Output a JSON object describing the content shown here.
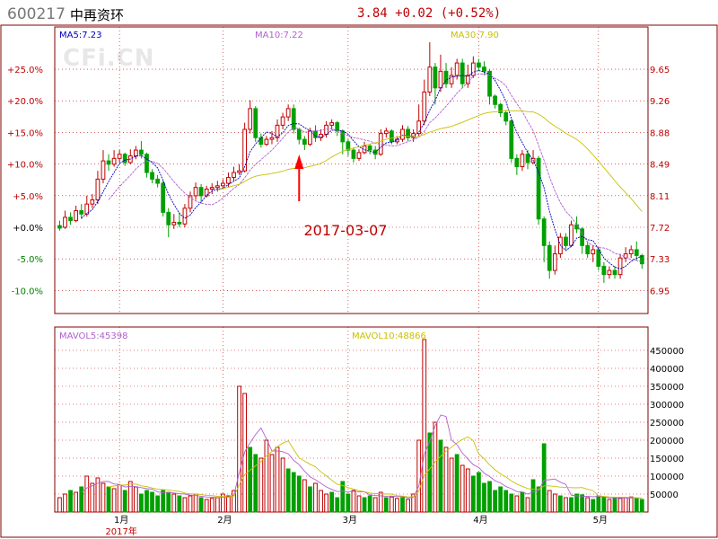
{
  "header": {
    "code": "600217",
    "name": "中再资环",
    "quote": "3.84 +0.02 (+0.52%)"
  },
  "watermark": "CFi.CN",
  "ma_labels": {
    "ma5": "MA5:7.23",
    "ma10": "MA10:7.22",
    "ma30": "MA30:7.90"
  },
  "vol_labels": {
    "mavol5": "MAVOL5:45398",
    "mavol10": "MAVOL10:48866"
  },
  "annotation": {
    "text": "2017-03-07"
  },
  "colors": {
    "up": "#c00000",
    "down": "#00a000",
    "ma5": "#0000c0",
    "ma10": "#b060d0",
    "ma30": "#c8c000",
    "axis": "#800000",
    "grid": "#c00000"
  },
  "chart_data": {
    "type": "candlestick",
    "pct_ticks": [
      "+25.0%",
      "+20.0%",
      "+15.0%",
      "+10.0%",
      "+5.0%",
      "+0.0%",
      "-5.0%",
      "-10.0%"
    ],
    "price_ticks": [
      9.65,
      9.26,
      8.88,
      8.49,
      8.11,
      7.72,
      7.33,
      6.95
    ],
    "vol_ticks": [
      450000,
      400000,
      350000,
      300000,
      250000,
      200000,
      150000,
      100000,
      50000
    ],
    "month_labels": [
      "1月",
      "2月",
      "3月",
      "4月",
      "5月"
    ],
    "year_label": "2017年",
    "candles": [
      [
        7.64,
        7.61,
        7.7,
        7.58
      ],
      [
        7.62,
        7.74,
        7.82,
        7.6
      ],
      [
        7.74,
        7.7,
        7.8,
        7.65
      ],
      [
        7.7,
        7.82,
        7.88,
        7.68
      ],
      [
        7.82,
        7.78,
        7.9,
        7.72
      ],
      [
        7.78,
        7.9,
        8.0,
        7.75
      ],
      [
        7.9,
        7.95,
        8.02,
        7.85
      ],
      [
        7.95,
        8.2,
        8.3,
        7.9
      ],
      [
        8.2,
        8.42,
        8.55,
        8.15
      ],
      [
        8.42,
        8.38,
        8.5,
        8.3
      ],
      [
        8.38,
        8.45,
        8.55,
        8.35
      ],
      [
        8.45,
        8.5,
        8.55,
        8.4
      ],
      [
        8.5,
        8.4,
        8.52,
        8.36
      ],
      [
        8.4,
        8.48,
        8.56,
        8.38
      ],
      [
        8.48,
        8.55,
        8.6,
        8.44
      ],
      [
        8.55,
        8.5,
        8.66,
        8.45
      ],
      [
        8.5,
        8.28,
        8.52,
        8.22
      ],
      [
        8.28,
        8.2,
        8.32,
        8.15
      ],
      [
        8.2,
        8.15,
        8.25,
        8.1
      ],
      [
        8.15,
        7.8,
        8.18,
        7.75
      ],
      [
        7.8,
        7.65,
        7.85,
        7.5
      ],
      [
        7.65,
        7.68,
        7.78,
        7.6
      ],
      [
        7.68,
        7.66,
        7.8,
        7.62
      ],
      [
        7.66,
        7.85,
        7.9,
        7.62
      ],
      [
        7.85,
        8.0,
        8.05,
        7.8
      ],
      [
        8.0,
        8.1,
        8.16,
        7.95
      ],
      [
        8.1,
        8.0,
        8.14,
        7.92
      ],
      [
        8.0,
        8.08,
        8.12,
        7.98
      ],
      [
        8.08,
        8.1,
        8.15,
        8.02
      ],
      [
        8.1,
        8.12,
        8.18,
        8.05
      ],
      [
        8.12,
        8.15,
        8.2,
        8.08
      ],
      [
        8.15,
        8.22,
        8.28,
        8.1
      ],
      [
        8.22,
        8.28,
        8.35,
        8.18
      ],
      [
        8.28,
        8.3,
        8.38,
        8.25
      ],
      [
        8.3,
        8.8,
        8.88,
        8.28
      ],
      [
        8.8,
        9.05,
        9.15,
        8.75
      ],
      [
        9.05,
        8.7,
        9.08,
        8.65
      ],
      [
        8.7,
        8.62,
        8.75,
        8.58
      ],
      [
        8.62,
        8.68,
        8.72,
        8.6
      ],
      [
        8.68,
        8.7,
        8.78,
        8.62
      ],
      [
        8.7,
        8.85,
        8.92,
        8.65
      ],
      [
        8.85,
        8.95,
        9.0,
        8.8
      ],
      [
        8.95,
        9.05,
        9.1,
        8.9
      ],
      [
        9.05,
        8.8,
        9.1,
        8.75
      ],
      [
        8.8,
        8.68,
        8.82,
        8.62
      ],
      [
        8.68,
        8.62,
        8.72,
        8.55
      ],
      [
        8.62,
        8.78,
        8.82,
        8.6
      ],
      [
        8.78,
        8.7,
        8.85,
        8.65
      ],
      [
        8.7,
        8.74,
        8.8,
        8.66
      ],
      [
        8.74,
        8.85,
        8.9,
        8.7
      ],
      [
        8.85,
        8.88,
        8.92,
        8.8
      ],
      [
        8.88,
        8.78,
        8.9,
        8.72
      ],
      [
        8.78,
        8.65,
        8.8,
        8.5
      ],
      [
        8.65,
        8.55,
        8.68,
        8.48
      ],
      [
        8.55,
        8.45,
        8.58,
        8.4
      ],
      [
        8.45,
        8.52,
        8.56,
        8.42
      ],
      [
        8.52,
        8.6,
        8.65,
        8.5
      ],
      [
        8.6,
        8.55,
        8.62,
        8.5
      ],
      [
        8.55,
        8.5,
        8.6,
        8.44
      ],
      [
        8.5,
        8.75,
        8.8,
        8.48
      ],
      [
        8.75,
        8.78,
        8.82,
        8.7
      ],
      [
        8.78,
        8.65,
        8.8,
        8.62
      ],
      [
        8.65,
        8.68,
        8.72,
        8.62
      ],
      [
        8.68,
        8.8,
        8.85,
        8.65
      ],
      [
        8.8,
        8.7,
        8.84,
        8.66
      ],
      [
        8.7,
        8.75,
        8.8,
        8.65
      ],
      [
        8.75,
        8.9,
        9.1,
        8.72
      ],
      [
        8.9,
        9.25,
        9.4,
        8.85
      ],
      [
        9.25,
        9.55,
        9.85,
        9.2
      ],
      [
        9.55,
        9.3,
        9.6,
        9.1
      ],
      [
        9.3,
        9.5,
        9.7,
        9.25
      ],
      [
        9.5,
        9.35,
        9.6,
        9.3
      ],
      [
        9.35,
        9.45,
        9.55,
        9.3
      ],
      [
        9.45,
        9.6,
        9.65,
        9.4
      ],
      [
        9.6,
        9.35,
        9.65,
        9.3
      ],
      [
        9.35,
        9.45,
        9.58,
        9.3
      ],
      [
        9.45,
        9.6,
        9.68,
        9.42
      ],
      [
        9.6,
        9.55,
        9.65,
        9.5
      ],
      [
        9.55,
        9.5,
        9.62,
        9.45
      ],
      [
        9.5,
        9.2,
        9.52,
        9.1
      ],
      [
        9.2,
        9.1,
        9.22,
        9.05
      ],
      [
        9.1,
        9.0,
        9.12,
        8.95
      ],
      [
        9.0,
        8.9,
        9.02,
        8.85
      ],
      [
        8.9,
        8.45,
        8.92,
        8.4
      ],
      [
        8.45,
        8.35,
        8.5,
        8.25
      ],
      [
        8.35,
        8.5,
        8.55,
        8.3
      ],
      [
        8.5,
        8.4,
        8.55,
        8.32
      ],
      [
        8.4,
        8.45,
        8.55,
        8.38
      ],
      [
        8.45,
        7.72,
        8.48,
        7.65
      ],
      [
        7.72,
        7.4,
        7.75,
        7.2
      ],
      [
        7.4,
        7.1,
        7.45,
        7.0
      ],
      [
        7.1,
        7.3,
        7.4,
        7.05
      ],
      [
        7.3,
        7.5,
        7.55,
        7.25
      ],
      [
        7.5,
        7.4,
        7.55,
        7.35
      ],
      [
        7.4,
        7.65,
        7.7,
        7.38
      ],
      [
        7.65,
        7.6,
        7.75,
        7.55
      ],
      [
        7.6,
        7.4,
        7.62,
        7.3
      ],
      [
        7.4,
        7.3,
        7.45,
        7.25
      ],
      [
        7.3,
        7.35,
        7.4,
        7.2
      ],
      [
        7.35,
        7.15,
        7.38,
        7.1
      ],
      [
        7.15,
        7.05,
        7.2,
        6.95
      ],
      [
        7.05,
        7.1,
        7.15,
        7.0
      ],
      [
        7.1,
        7.05,
        7.15,
        7.0
      ],
      [
        7.05,
        7.25,
        7.3,
        7.0
      ],
      [
        7.25,
        7.3,
        7.38,
        7.2
      ],
      [
        7.3,
        7.35,
        7.4,
        7.25
      ],
      [
        7.35,
        7.28,
        7.45,
        7.22
      ],
      [
        7.28,
        7.18,
        7.3,
        7.12
      ]
    ],
    "volumes": [
      40000,
      50000,
      60000,
      55000,
      70000,
      100000,
      80000,
      95000,
      80000,
      70000,
      65000,
      75000,
      60000,
      85000,
      70000,
      50000,
      60000,
      55000,
      45000,
      60000,
      55000,
      50000,
      45000,
      40000,
      45000,
      50000,
      40000,
      35000,
      38000,
      40000,
      50000,
      45000,
      60000,
      350000,
      330000,
      180000,
      160000,
      150000,
      200000,
      160000,
      180000,
      150000,
      120000,
      110000,
      100000,
      90000,
      70000,
      80000,
      60000,
      50000,
      55000,
      40000,
      85000,
      50000,
      60000,
      45000,
      40000,
      45000,
      40000,
      55000,
      40000,
      42000,
      38000,
      40000,
      35000,
      50000,
      200000,
      480000,
      220000,
      250000,
      200000,
      180000,
      150000,
      160000,
      130000,
      120000,
      100000,
      110000,
      80000,
      85000,
      60000,
      70000,
      60000,
      50000,
      45000,
      55000,
      40000,
      90000,
      70000,
      190000,
      60000,
      50000,
      45000,
      40000,
      40000,
      50000,
      48000,
      40000,
      35000,
      45000,
      42000,
      35000,
      40000,
      38000,
      40000,
      42000,
      38000,
      35000
    ],
    "volume_up": [
      true,
      true,
      false,
      true,
      false,
      true,
      true,
      true,
      true,
      false,
      true,
      true,
      false,
      true,
      true,
      false,
      false,
      false,
      false,
      false,
      false,
      true,
      false,
      true,
      true,
      true,
      false,
      true,
      true,
      true,
      true,
      true,
      true,
      true,
      true,
      false,
      false,
      true,
      true,
      true,
      true,
      true,
      false,
      false,
      false,
      true,
      false,
      true,
      true,
      true,
      false,
      false,
      false,
      false,
      true,
      true,
      false,
      false,
      true,
      true,
      false,
      true,
      true,
      false,
      true,
      true,
      true,
      true,
      false,
      true,
      false,
      true,
      true,
      false,
      true,
      true,
      false,
      false,
      false,
      false,
      false,
      false,
      false,
      false,
      true,
      false,
      true,
      false,
      false,
      false,
      true,
      true,
      false,
      true,
      false,
      false,
      false,
      true,
      false,
      false,
      false,
      true,
      false,
      true,
      true,
      true,
      false,
      false
    ]
  }
}
